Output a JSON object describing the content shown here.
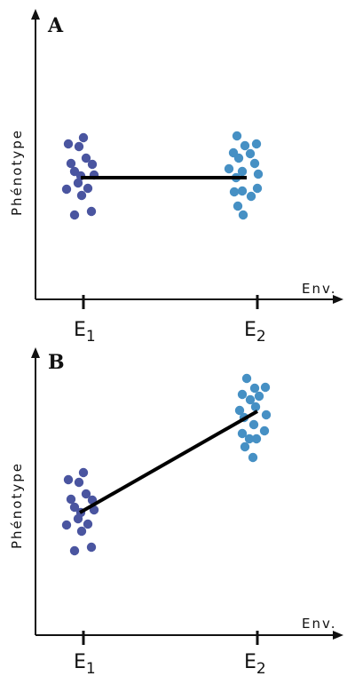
{
  "colors": {
    "axis": "#111111",
    "e1_points": "#4a55a0",
    "e2_points": "#4690c4",
    "reaction_norm": "#000000"
  },
  "panels": [
    {
      "label": "A",
      "ylabel": "Phénotype",
      "xlabel": "Env.",
      "ticks": [
        {
          "letter": "E",
          "sub": "1"
        },
        {
          "letter": "E",
          "sub": "2"
        }
      ]
    },
    {
      "label": "B",
      "ylabel": "Phénotype",
      "xlabel": "Env.",
      "ticks": [
        {
          "letter": "E",
          "sub": "1"
        },
        {
          "letter": "E",
          "sub": "2"
        }
      ]
    }
  ]
}
